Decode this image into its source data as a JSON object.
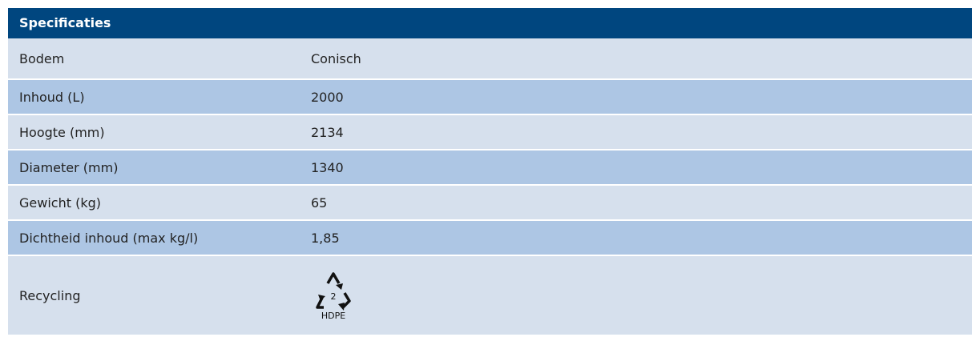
{
  "header": {
    "title": "Specificaties"
  },
  "table": {
    "rows": [
      [
        "Bodem",
        "Conisch"
      ],
      [
        "Inhoud (L)",
        "2000"
      ],
      [
        "Hoogte (mm)",
        "2134"
      ],
      [
        "Diameter (mm)",
        "1340"
      ],
      [
        "Gewicht (kg)",
        "65"
      ],
      [
        "Dichtheid inhoud (max kg/l)",
        "1,85"
      ]
    ],
    "recycling": {
      "label": "Recycling",
      "code": "2",
      "material": "HDPE"
    }
  }
}
